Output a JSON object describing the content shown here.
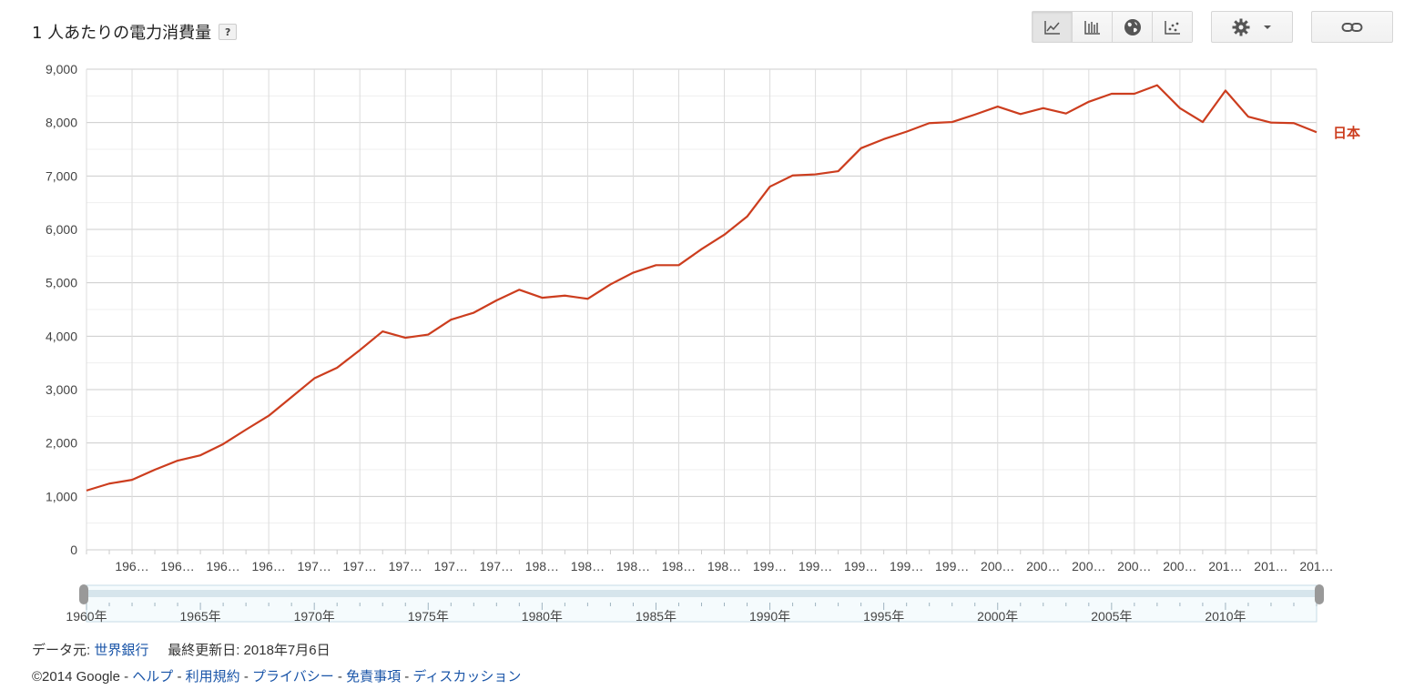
{
  "header": {
    "title": "1 人あたりの電力消費量",
    "help_label": "?"
  },
  "toolbar": {
    "buttons": [
      {
        "icon": "line-chart-icon"
      },
      {
        "icon": "bar-chart-icon"
      },
      {
        "icon": "globe-icon"
      },
      {
        "icon": "scatter-chart-icon"
      }
    ],
    "settings_icon": "gear-icon",
    "dropdown_icon": "caret-down-icon",
    "link_icon": "link-icon"
  },
  "chart_data": {
    "type": "line",
    "title": "1 人あたりの電力消費量",
    "ylim": [
      0,
      9000
    ],
    "yticks": [
      0,
      1000,
      2000,
      3000,
      4000,
      5000,
      6000,
      7000,
      8000,
      9000
    ],
    "ytick_labels": [
      "0",
      "1,000",
      "2,000",
      "3,000",
      "4,000",
      "5,000",
      "6,000",
      "7,000",
      "8,000",
      "9,000"
    ],
    "xlim": [
      1960,
      2014
    ],
    "xtick_labels": [
      "196…",
      "196…",
      "196…",
      "196…",
      "197…",
      "197…",
      "197…",
      "197…",
      "197…",
      "198…",
      "198…",
      "198…",
      "198…",
      "198…",
      "199…",
      "199…",
      "199…",
      "199…",
      "199…",
      "200…",
      "200…",
      "200…",
      "200…",
      "200…",
      "201…",
      "201…",
      "201…"
    ],
    "grid": true,
    "series": [
      {
        "name": "日本",
        "color": "#cc3d1e",
        "x": [
          1960,
          1961,
          1962,
          1963,
          1964,
          1965,
          1966,
          1967,
          1968,
          1969,
          1970,
          1971,
          1972,
          1973,
          1974,
          1975,
          1976,
          1977,
          1978,
          1979,
          1980,
          1981,
          1982,
          1983,
          1984,
          1985,
          1986,
          1987,
          1988,
          1989,
          1990,
          1991,
          1992,
          1993,
          1994,
          1995,
          1996,
          1997,
          1998,
          1999,
          2000,
          2001,
          2002,
          2003,
          2004,
          2005,
          2006,
          2007,
          2008,
          2009,
          2010,
          2011,
          2012,
          2013,
          2014
        ],
        "y": [
          1110,
          1240,
          1310,
          1500,
          1670,
          1770,
          1980,
          2250,
          2510,
          2860,
          3210,
          3410,
          3740,
          4090,
          3970,
          4030,
          4310,
          4440,
          4670,
          4870,
          4720,
          4760,
          4700,
          4970,
          5190,
          5330,
          5330,
          5630,
          5900,
          6240,
          6800,
          7010,
          7030,
          7090,
          7520,
          7690,
          7830,
          7990,
          8010,
          8150,
          8300,
          8160,
          8270,
          8170,
          8390,
          8540,
          8540,
          8700,
          8270,
          8010,
          8600,
          8110,
          8000,
          7990,
          7820
        ]
      }
    ]
  },
  "timeline": {
    "labels": [
      "1960年",
      "1965年",
      "1970年",
      "1975年",
      "1980年",
      "1985年",
      "1990年",
      "1995年",
      "2000年",
      "2005年",
      "2010年"
    ]
  },
  "footer": {
    "source_prefix": "データ元:",
    "source_link": "世界銀行",
    "updated": "最終更新日: 2018年7月6日",
    "copyright": "©2014 Google -",
    "links": [
      "ヘルプ",
      "利用規約",
      "プライバシー",
      "免責事項",
      "ディスカッション"
    ],
    "separator": "-"
  }
}
